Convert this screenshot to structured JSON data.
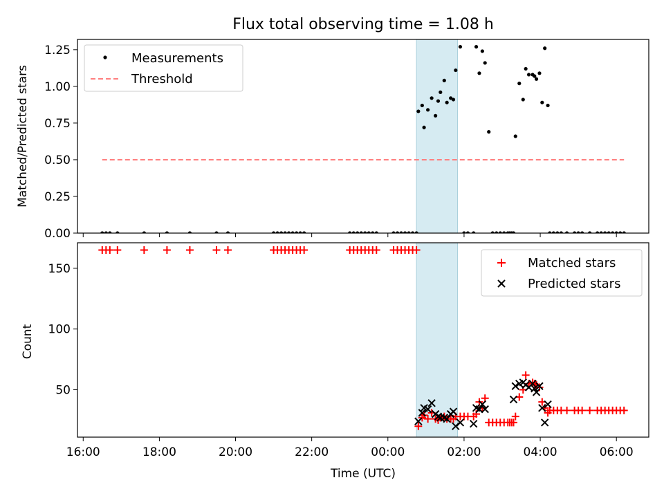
{
  "chart_data": [
    {
      "type": "scatter",
      "title": "Flux total observing time = 1.08 h",
      "xlabel": "",
      "ylabel": "Matched/Predicted stars",
      "ylim": [
        0.0,
        1.32
      ],
      "yticks": [
        0.0,
        0.25,
        0.5,
        0.75,
        1.0,
        1.25
      ],
      "ytick_labels": [
        "0.00",
        "0.25",
        "0.50",
        "0.75",
        "1.00",
        "1.25"
      ],
      "xlim_hours": [
        15.85,
        30.85
      ],
      "shaded_span_hours": [
        24.75,
        25.83
      ],
      "legend_position": "upper-left",
      "grid": false,
      "series": [
        {
          "name": "Measurements",
          "marker": "dot",
          "color": "#000000",
          "x_hours": [
            16.5,
            16.6,
            16.7,
            16.9,
            17.6,
            18.2,
            18.8,
            19.5,
            19.8,
            21.0,
            21.1,
            21.2,
            21.3,
            21.4,
            21.5,
            21.6,
            21.7,
            21.8,
            23.0,
            23.1,
            23.2,
            23.3,
            23.4,
            23.5,
            23.6,
            23.7,
            24.15,
            24.25,
            24.35,
            24.45,
            24.55,
            24.65,
            24.75,
            24.8,
            24.9,
            24.95,
            25.05,
            25.15,
            25.25,
            25.32,
            25.38,
            25.48,
            25.55,
            25.65,
            25.72,
            25.78,
            25.9,
            26.0,
            26.1,
            26.25,
            26.32,
            26.4,
            26.48,
            26.55,
            26.65,
            26.75,
            26.85,
            26.95,
            27.05,
            27.15,
            27.2,
            27.25,
            27.3,
            27.35,
            27.45,
            27.55,
            27.62,
            27.7,
            27.8,
            27.85,
            27.9,
            27.98,
            28.05,
            28.12,
            28.2,
            28.25,
            28.35,
            28.45,
            28.55,
            28.7,
            28.9,
            29.0,
            29.1,
            29.3,
            29.5,
            29.6,
            29.7,
            29.8,
            29.9,
            30.0,
            30.1,
            30.2
          ],
          "y": [
            0,
            0,
            0,
            0,
            0,
            0,
            0,
            0,
            0,
            0,
            0,
            0,
            0,
            0,
            0,
            0,
            0,
            0,
            0,
            0,
            0,
            0,
            0,
            0,
            0,
            0,
            0,
            0,
            0,
            0,
            0,
            0,
            0,
            0.83,
            0.87,
            0.72,
            0.84,
            0.92,
            0.8,
            0.9,
            0.96,
            1.04,
            0.89,
            0.92,
            0.91,
            1.11,
            1.27,
            0,
            0,
            0,
            1.27,
            1.09,
            1.24,
            1.16,
            0.69,
            0,
            0,
            0,
            0,
            0,
            0,
            0,
            0,
            0.66,
            1.02,
            0.91,
            1.12,
            1.08,
            1.08,
            1.07,
            1.05,
            1.09,
            0.89,
            1.26,
            0.87,
            0,
            0,
            0,
            0,
            0,
            0,
            0,
            0,
            0,
            0,
            0,
            0,
            0,
            0,
            0,
            0,
            0
          ]
        },
        {
          "name": "Threshold",
          "style": "dashed",
          "color": "#ff7f7f",
          "x_hours": [
            16.5,
            30.2
          ],
          "y": [
            0.5,
            0.5
          ]
        }
      ]
    },
    {
      "type": "scatter",
      "title": "",
      "xlabel": "Time (UTC)",
      "ylabel": "Count",
      "ylim": [
        11,
        171
      ],
      "yticks": [
        50,
        100,
        150
      ],
      "ytick_labels": [
        "50",
        "100",
        "150"
      ],
      "xlim_hours": [
        15.85,
        30.85
      ],
      "xticks_hours": [
        16,
        18,
        20,
        22,
        24,
        26,
        28,
        30
      ],
      "xtick_labels": [
        "16:00",
        "18:00",
        "20:00",
        "22:00",
        "00:00",
        "02:00",
        "04:00",
        "06:00"
      ],
      "shaded_span_hours": [
        24.75,
        25.83
      ],
      "legend_position": "upper-right",
      "grid": false,
      "series": [
        {
          "name": "Matched stars",
          "marker": "plus",
          "color": "#ff0000",
          "x_hours": [
            16.5,
            16.6,
            16.7,
            16.9,
            17.6,
            18.2,
            18.8,
            19.5,
            19.8,
            21.0,
            21.1,
            21.2,
            21.3,
            21.4,
            21.5,
            21.6,
            21.7,
            21.8,
            23.0,
            23.1,
            23.2,
            23.3,
            23.4,
            23.5,
            23.6,
            23.7,
            24.15,
            24.25,
            24.35,
            24.45,
            24.55,
            24.65,
            24.75,
            24.8,
            24.9,
            24.95,
            25.05,
            25.15,
            25.25,
            25.32,
            25.38,
            25.48,
            25.55,
            25.65,
            25.72,
            25.78,
            25.9,
            26.0,
            26.1,
            26.25,
            26.32,
            26.4,
            26.48,
            26.55,
            26.65,
            26.75,
            26.85,
            26.95,
            27.05,
            27.15,
            27.2,
            27.25,
            27.3,
            27.35,
            27.45,
            27.55,
            27.62,
            27.7,
            27.8,
            27.85,
            27.9,
            27.98,
            28.05,
            28.12,
            28.2,
            28.25,
            28.35,
            28.45,
            28.55,
            28.7,
            28.9,
            29.0,
            29.1,
            29.3,
            29.5,
            29.6,
            29.7,
            29.8,
            29.9,
            30.0,
            30.1,
            30.2
          ],
          "y": [
            165,
            165,
            165,
            165,
            165,
            165,
            165,
            165,
            165,
            165,
            165,
            165,
            165,
            165,
            165,
            165,
            165,
            165,
            165,
            165,
            165,
            165,
            165,
            165,
            165,
            165,
            165,
            165,
            165,
            165,
            165,
            165,
            165,
            20,
            27,
            29,
            26,
            31,
            26,
            25,
            27,
            28,
            26,
            26,
            26,
            28,
            28,
            28,
            28,
            28,
            30,
            40,
            35,
            43,
            23,
            23,
            23,
            23,
            23,
            23,
            23,
            23,
            23,
            28,
            44,
            50,
            62,
            55,
            56,
            55,
            54,
            52,
            40,
            35,
            31,
            33,
            33,
            33,
            33,
            33,
            33,
            33,
            33,
            33,
            33,
            33,
            33,
            33,
            33,
            33,
            33,
            33
          ]
        },
        {
          "name": "Predicted stars",
          "marker": "x",
          "color": "#000000",
          "x_hours": [
            24.8,
            24.9,
            24.95,
            25.05,
            25.15,
            25.25,
            25.32,
            25.38,
            25.48,
            25.55,
            25.65,
            25.72,
            25.78,
            25.9,
            26.25,
            26.32,
            26.4,
            26.48,
            26.55,
            27.3,
            27.35,
            27.45,
            27.55,
            27.62,
            27.7,
            27.8,
            27.85,
            27.9,
            27.98,
            28.05,
            28.12,
            28.2
          ],
          "y": [
            24,
            31,
            35,
            34,
            39,
            30,
            28,
            27,
            27,
            26,
            30,
            32,
            20,
            23,
            22,
            35,
            34,
            38,
            34,
            42,
            53,
            55,
            56,
            54,
            52,
            55,
            51,
            48,
            53,
            35,
            23,
            38
          ]
        }
      ]
    }
  ]
}
